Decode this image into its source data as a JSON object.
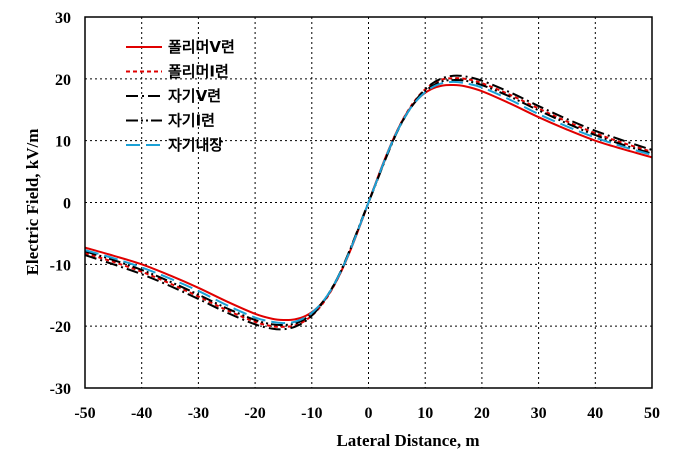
{
  "chart_data": {
    "type": "line",
    "xlabel": "Lateral Distance, m",
    "ylabel": "Electric Field, kV/m",
    "xlim": [
      -50,
      50
    ],
    "ylim": [
      -30,
      30
    ],
    "xticks": [
      -50,
      -40,
      -30,
      -20,
      -10,
      0,
      10,
      20,
      30,
      40,
      50
    ],
    "yticks": [
      -30,
      -20,
      -10,
      0,
      10,
      20,
      30
    ],
    "grid": true,
    "legend_position": "top-left",
    "series": [
      {
        "name": "폴리머V련",
        "color": "#e00000",
        "dash": "solid",
        "points": [
          [
            -50,
            -7.3
          ],
          [
            -45,
            -8.6
          ],
          [
            -40,
            -10.0
          ],
          [
            -35,
            -11.8
          ],
          [
            -30,
            -13.8
          ],
          [
            -25,
            -16.0
          ],
          [
            -20,
            -18.0
          ],
          [
            -17,
            -18.8
          ],
          [
            -15,
            -19.0
          ],
          [
            -13,
            -18.9
          ],
          [
            -11,
            -18.3
          ],
          [
            -9,
            -17.0
          ],
          [
            -7,
            -14.8
          ],
          [
            -5,
            -11.5
          ],
          [
            -3,
            -7.3
          ],
          [
            -1,
            -2.5
          ],
          [
            0,
            0
          ],
          [
            1,
            2.5
          ],
          [
            3,
            7.3
          ],
          [
            5,
            11.5
          ],
          [
            7,
            14.8
          ],
          [
            9,
            17.0
          ],
          [
            11,
            18.3
          ],
          [
            13,
            18.9
          ],
          [
            15,
            19.0
          ],
          [
            17,
            18.8
          ],
          [
            20,
            18.0
          ],
          [
            25,
            16.0
          ],
          [
            30,
            13.8
          ],
          [
            35,
            11.8
          ],
          [
            40,
            10.0
          ],
          [
            45,
            8.6
          ],
          [
            50,
            7.3
          ]
        ]
      },
      {
        "name": "폴리머I련",
        "color": "#e00000",
        "dash": "dashed",
        "points": [
          [
            -50,
            -8.2
          ],
          [
            -45,
            -9.6
          ],
          [
            -40,
            -11.2
          ],
          [
            -35,
            -13.1
          ],
          [
            -30,
            -15.2
          ],
          [
            -25,
            -17.4
          ],
          [
            -20,
            -19.3
          ],
          [
            -17,
            -20.0
          ],
          [
            -15,
            -20.1
          ],
          [
            -13,
            -19.9
          ],
          [
            -11,
            -19.0
          ],
          [
            -9,
            -17.4
          ],
          [
            -7,
            -14.9
          ],
          [
            -5,
            -11.5
          ],
          [
            -3,
            -7.1
          ],
          [
            -1,
            -2.4
          ],
          [
            0,
            0
          ],
          [
            1,
            2.4
          ],
          [
            3,
            7.1
          ],
          [
            5,
            11.5
          ],
          [
            7,
            14.9
          ],
          [
            9,
            17.4
          ],
          [
            11,
            19.0
          ],
          [
            13,
            19.9
          ],
          [
            15,
            20.1
          ],
          [
            17,
            20.0
          ],
          [
            20,
            19.3
          ],
          [
            25,
            17.4
          ],
          [
            30,
            15.2
          ],
          [
            35,
            13.1
          ],
          [
            40,
            11.2
          ],
          [
            45,
            9.6
          ],
          [
            50,
            8.2
          ]
        ]
      },
      {
        "name": "자기V련",
        "color": "#000000",
        "dash": "dashdot",
        "points": [
          [
            -50,
            -8.5
          ],
          [
            -45,
            -10.0
          ],
          [
            -40,
            -11.6
          ],
          [
            -35,
            -13.5
          ],
          [
            -30,
            -15.6
          ],
          [
            -25,
            -17.8
          ],
          [
            -20,
            -19.7
          ],
          [
            -17,
            -20.4
          ],
          [
            -15,
            -20.5
          ],
          [
            -13,
            -20.1
          ],
          [
            -11,
            -19.1
          ],
          [
            -9,
            -17.3
          ],
          [
            -7,
            -14.7
          ],
          [
            -5,
            -11.3
          ],
          [
            -3,
            -7.0
          ],
          [
            -1,
            -2.3
          ],
          [
            0,
            0
          ],
          [
            1,
            2.3
          ],
          [
            3,
            7.0
          ],
          [
            5,
            11.3
          ],
          [
            7,
            14.7
          ],
          [
            9,
            17.3
          ],
          [
            11,
            19.1
          ],
          [
            13,
            20.1
          ],
          [
            15,
            20.5
          ],
          [
            17,
            20.4
          ],
          [
            20,
            19.7
          ],
          [
            25,
            17.8
          ],
          [
            30,
            15.6
          ],
          [
            35,
            13.5
          ],
          [
            40,
            11.6
          ],
          [
            45,
            10.0
          ],
          [
            50,
            8.5
          ]
        ]
      },
      {
        "name": "자기I련",
        "color": "#000000",
        "dash": "dashdotdot",
        "points": [
          [
            -50,
            -7.9
          ],
          [
            -45,
            -9.3
          ],
          [
            -40,
            -10.9
          ],
          [
            -35,
            -12.8
          ],
          [
            -30,
            -14.9
          ],
          [
            -25,
            -17.1
          ],
          [
            -20,
            -19.0
          ],
          [
            -17,
            -19.7
          ],
          [
            -15,
            -19.8
          ],
          [
            -13,
            -19.6
          ],
          [
            -11,
            -18.7
          ],
          [
            -9,
            -17.1
          ],
          [
            -7,
            -14.7
          ],
          [
            -5,
            -11.4
          ],
          [
            -3,
            -7.1
          ],
          [
            -1,
            -2.4
          ],
          [
            0,
            0
          ],
          [
            1,
            2.4
          ],
          [
            3,
            7.1
          ],
          [
            5,
            11.4
          ],
          [
            7,
            14.7
          ],
          [
            9,
            17.1
          ],
          [
            11,
            18.7
          ],
          [
            13,
            19.6
          ],
          [
            15,
            19.8
          ],
          [
            17,
            19.7
          ],
          [
            20,
            19.0
          ],
          [
            25,
            17.1
          ],
          [
            30,
            14.9
          ],
          [
            35,
            12.8
          ],
          [
            40,
            10.9
          ],
          [
            45,
            9.3
          ],
          [
            50,
            7.9
          ]
        ]
      },
      {
        "name": "자기내장",
        "color": "#1ba1d6",
        "dash": "longdash",
        "points": [
          [
            -50,
            -7.7
          ],
          [
            -45,
            -9.0
          ],
          [
            -40,
            -10.5
          ],
          [
            -35,
            -12.3
          ],
          [
            -30,
            -14.3
          ],
          [
            -25,
            -16.6
          ],
          [
            -20,
            -18.6
          ],
          [
            -17,
            -19.3
          ],
          [
            -15,
            -19.5
          ],
          [
            -13,
            -19.3
          ],
          [
            -11,
            -18.5
          ],
          [
            -9,
            -17.0
          ],
          [
            -7,
            -14.7
          ],
          [
            -5,
            -11.4
          ],
          [
            -3,
            -7.2
          ],
          [
            -1,
            -2.4
          ],
          [
            0,
            0
          ],
          [
            1,
            2.4
          ],
          [
            3,
            7.2
          ],
          [
            5,
            11.4
          ],
          [
            7,
            14.7
          ],
          [
            9,
            17.0
          ],
          [
            11,
            18.5
          ],
          [
            13,
            19.3
          ],
          [
            15,
            19.5
          ],
          [
            17,
            19.3
          ],
          [
            20,
            18.6
          ],
          [
            25,
            16.6
          ],
          [
            30,
            14.3
          ],
          [
            35,
            12.3
          ],
          [
            40,
            10.5
          ],
          [
            45,
            9.0
          ],
          [
            50,
            7.7
          ]
        ]
      }
    ]
  }
}
